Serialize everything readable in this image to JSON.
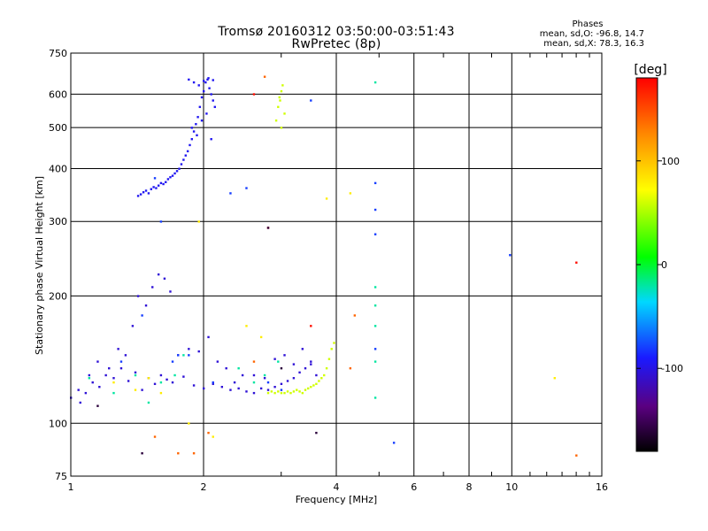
{
  "title_line1": "Tromsø 20160312 03:50:00-03:51:43",
  "title_line2": "RwPretec (8p)",
  "stats": {
    "heading": "Phases",
    "line_o": "mean, sd,O: -96.8, 14.7",
    "line_x": "mean, sd,X:  78.3, 16.3"
  },
  "colorbar": {
    "label": "[deg]",
    "ticks": [
      "100",
      "0",
      "-100"
    ],
    "tick_values": [
      100,
      0,
      -100
    ],
    "range": [
      -180,
      180
    ]
  },
  "chart_data": {
    "type": "scatter",
    "xlabel": "Frequency [MHz]",
    "ylabel": "Stationary phase Virtual Height [km]",
    "xscale": "log",
    "yscale": "log",
    "xlim": [
      1,
      16
    ],
    "ylim": [
      75,
      750
    ],
    "xticks": [
      1,
      2,
      4,
      6,
      8,
      10,
      16
    ],
    "xtick_labels": [
      "1",
      "2",
      "4",
      "6",
      "8",
      "10",
      "16"
    ],
    "yticks": [
      75,
      100,
      200,
      300,
      400,
      500,
      600,
      750
    ],
    "ytick_labels": [
      "75",
      "100",
      "200",
      "300",
      "400",
      "500",
      "600",
      "750"
    ],
    "grid": true,
    "colorbar_label": "[deg]",
    "series": [
      {
        "color_value": -105,
        "x": [
          1.0,
          1.04,
          1.08,
          1.12,
          1.16,
          1.2,
          1.25,
          1.3,
          1.35,
          1.4,
          1.45,
          1.5,
          1.55,
          1.6,
          1.65,
          1.7,
          1.8,
          1.9,
          2.0,
          2.1,
          2.2,
          2.3,
          2.4,
          2.5,
          2.6,
          2.7,
          2.8,
          2.9,
          3.0,
          3.1,
          3.2,
          3.3,
          3.4,
          3.5,
          1.05,
          1.1,
          1.15,
          1.22,
          1.28,
          1.33,
          1.38,
          1.42,
          1.48,
          1.53,
          1.58,
          1.63,
          1.68,
          1.75,
          1.85,
          1.95,
          2.05,
          2.15,
          2.25,
          2.35,
          2.45,
          2.6,
          2.75,
          2.9,
          3.05,
          3.2,
          3.35,
          3.5,
          3.6
        ],
        "y": [
          115,
          120,
          118,
          125,
          122,
          130,
          128,
          135,
          126,
          132,
          120,
          128,
          124,
          130,
          127,
          125,
          129,
          123,
          121,
          124,
          122,
          120,
          121,
          119,
          118,
          121,
          120,
          122,
          124,
          126,
          128,
          132,
          135,
          138,
          112,
          130,
          140,
          135,
          150,
          145,
          170,
          200,
          190,
          210,
          225,
          220,
          205,
          145,
          150,
          148,
          160,
          140,
          135,
          125,
          130,
          130,
          128,
          142,
          145,
          138,
          150,
          140,
          130
        ]
      },
      {
        "color_value": -95,
        "x": [
          1.42,
          1.44,
          1.46,
          1.48,
          1.5,
          1.52,
          1.54,
          1.56,
          1.58,
          1.6,
          1.62,
          1.64,
          1.66,
          1.68,
          1.7,
          1.72,
          1.74,
          1.76,
          1.78,
          1.8,
          1.82,
          1.84,
          1.86,
          1.88,
          1.9,
          1.92,
          1.94,
          1.96,
          1.98,
          2.0,
          2.02,
          2.04,
          2.06,
          2.08,
          2.1,
          2.12,
          1.85,
          1.9,
          1.95,
          2.0,
          2.05,
          2.1,
          1.88,
          1.93,
          1.98,
          2.03,
          2.08
        ],
        "y": [
          345,
          348,
          352,
          355,
          350,
          358,
          362,
          360,
          365,
          370,
          368,
          372,
          378,
          382,
          385,
          390,
          395,
          400,
          410,
          420,
          430,
          440,
          455,
          470,
          490,
          510,
          530,
          560,
          590,
          610,
          640,
          650,
          620,
          600,
          580,
          560,
          650,
          640,
          630,
          645,
          655,
          648,
          500,
          480,
          520,
          540,
          470
        ]
      },
      {
        "color_value": -80,
        "x": [
          1.55,
          1.6,
          1.7,
          1.85,
          2.1,
          2.3,
          2.5,
          2.8,
          3.0,
          3.5,
          4.9,
          4.9,
          4.9,
          4.9,
          5.4,
          9.9,
          1.3,
          1.45,
          1.75
        ],
        "y": [
          380,
          300,
          140,
          145,
          125,
          350,
          360,
          125,
          120,
          580,
          370,
          320,
          280,
          150,
          90,
          250,
          140,
          180,
          145
        ]
      },
      {
        "color_value": -20,
        "x": [
          1.1,
          1.25,
          1.4,
          1.6,
          1.72,
          1.8,
          2.4,
          2.6,
          2.75,
          4.9,
          4.9,
          4.9,
          4.9,
          4.9,
          4.9,
          1.5,
          2.95
        ],
        "y": [
          128,
          118,
          130,
          125,
          130,
          145,
          135,
          125,
          130,
          210,
          190,
          170,
          140,
          115,
          640,
          112,
          140
        ]
      },
      {
        "color_value": 60,
        "x": [
          2.8,
          2.85,
          2.9,
          2.95,
          3.0,
          3.05,
          3.1,
          3.15,
          3.2,
          3.25,
          3.3,
          3.35,
          3.4,
          3.45,
          3.5,
          3.55,
          3.6,
          3.65,
          3.7,
          3.75,
          3.8,
          3.85,
          3.9,
          3.95,
          2.92,
          2.95,
          2.97,
          3.0,
          3.02,
          3.05,
          3.0,
          2.98
        ],
        "y": [
          118,
          119,
          118,
          119,
          118,
          118,
          119,
          118,
          119,
          120,
          119,
          118,
          120,
          121,
          122,
          123,
          124,
          126,
          128,
          130,
          135,
          142,
          150,
          155,
          520,
          560,
          590,
          610,
          630,
          540,
          500,
          580
        ]
      },
      {
        "color_value": 80,
        "x": [
          1.25,
          1.4,
          1.5,
          1.6,
          1.85,
          2.1,
          2.5,
          2.7,
          3.8,
          4.3,
          12.5,
          1.95
        ],
        "y": [
          125,
          120,
          128,
          118,
          100,
          93,
          170,
          160,
          340,
          350,
          128,
          300
        ]
      },
      {
        "color_value": 140,
        "x": [
          1.55,
          1.75,
          2.05,
          2.6,
          2.75,
          4.4,
          4.3,
          1.9,
          14.0
        ],
        "y": [
          93,
          85,
          95,
          140,
          660,
          180,
          135,
          85,
          84
        ]
      },
      {
        "color_value": 175,
        "x": [
          2.8,
          14.0,
          2.6,
          3.5
        ],
        "y": [
          290,
          240,
          600,
          170
        ]
      },
      {
        "color_value": -160,
        "x": [
          1.45,
          2.8,
          3.6,
          3.0,
          1.15
        ],
        "y": [
          85,
          290,
          95,
          135,
          110
        ]
      }
    ]
  }
}
